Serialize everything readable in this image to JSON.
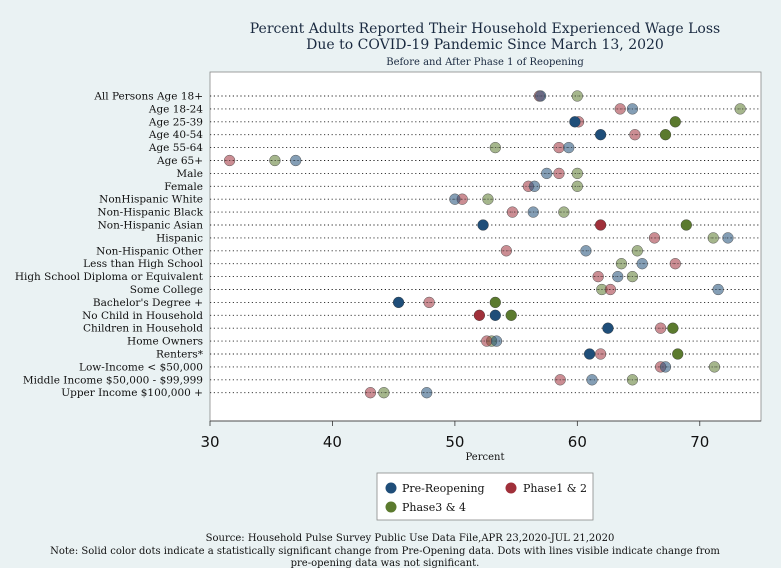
{
  "chart_data": {
    "type": "scatter",
    "title": "Percent Adults Reported Their Household Experienced Wage Loss",
    "title_line2": "Due to COVID-19 Pandemic Since March 13, 2020",
    "subtitle": "Before and After Phase 1 of Reopening",
    "xlabel": "Percent",
    "xlim": [
      30,
      75
    ],
    "xticks": [
      30,
      40,
      50,
      60,
      70
    ],
    "grid": "dotted horizontal lines per category",
    "legend_position": "bottom-center",
    "categories": [
      "All Persons Age 18+",
      "Age 18-24",
      "Age 25-39",
      "Age 40-54",
      "Age 55-64",
      "Age 65+",
      "Male",
      "Female",
      "NonHispanic White",
      "Non-Hispanic Black",
      "Non-Hispanic Asian",
      "Hispanic",
      "Non-Hispanic Other",
      "Less than High School",
      "High School Diploma or Equivalent",
      "Some College",
      "Bachelor's Degree +",
      "No Child in Household",
      "Children in Household",
      "Home Owners",
      "Renters*",
      "Low-Income < $50,000",
      "Middle Income $50,000 - $99,999",
      "Upper Income $100,000 +"
    ],
    "series": [
      {
        "name": "Pre-Reopening",
        "color": "#1f4e79",
        "values": [
          57.0,
          64.5,
          59.8,
          61.9,
          59.3,
          37.0,
          57.5,
          56.5,
          50.0,
          56.4,
          52.3,
          72.3,
          60.7,
          65.3,
          63.3,
          71.5,
          45.4,
          53.3,
          62.5,
          53.4,
          61.0,
          67.2,
          61.2,
          47.7
        ],
        "solid": [
          false,
          false,
          true,
          true,
          false,
          false,
          false,
          false,
          false,
          false,
          true,
          false,
          false,
          false,
          false,
          false,
          true,
          true,
          true,
          false,
          true,
          false,
          false,
          false
        ]
      },
      {
        "name": "Phase1 & 2",
        "color": "#a0303a",
        "values": [
          56.9,
          63.5,
          60.1,
          64.7,
          58.5,
          31.6,
          58.5,
          56.0,
          50.6,
          54.7,
          61.9,
          66.3,
          54.2,
          68.0,
          61.7,
          62.7,
          47.9,
          52.0,
          66.8,
          52.6,
          61.9,
          66.8,
          58.6,
          43.1
        ],
        "solid": [
          false,
          false,
          false,
          false,
          false,
          false,
          false,
          false,
          false,
          false,
          true,
          false,
          false,
          false,
          false,
          false,
          false,
          true,
          false,
          false,
          false,
          false,
          false,
          false
        ]
      },
      {
        "name": "Phase3 & 4",
        "color": "#5b7a2e",
        "values": [
          60.0,
          73.3,
          68.0,
          67.2,
          53.3,
          35.3,
          60.0,
          60.0,
          52.7,
          58.9,
          68.9,
          71.1,
          64.9,
          63.6,
          64.5,
          62.0,
          53.3,
          54.6,
          67.8,
          53.0,
          68.2,
          71.2,
          64.5,
          44.2
        ],
        "solid": [
          false,
          false,
          true,
          true,
          false,
          false,
          false,
          false,
          false,
          false,
          true,
          false,
          false,
          false,
          false,
          false,
          true,
          true,
          true,
          false,
          true,
          false,
          false,
          false
        ]
      }
    ],
    "source": "Source: Household Pulse Survey Public Use Data File,APR 23,2020-JUL 21,2020",
    "note_line1": "Note: Solid color dots indicate a statistically significant change from Pre-Opening data. Dots with lines visible indicate change from",
    "note_line2": "pre-opening data was not significant."
  }
}
